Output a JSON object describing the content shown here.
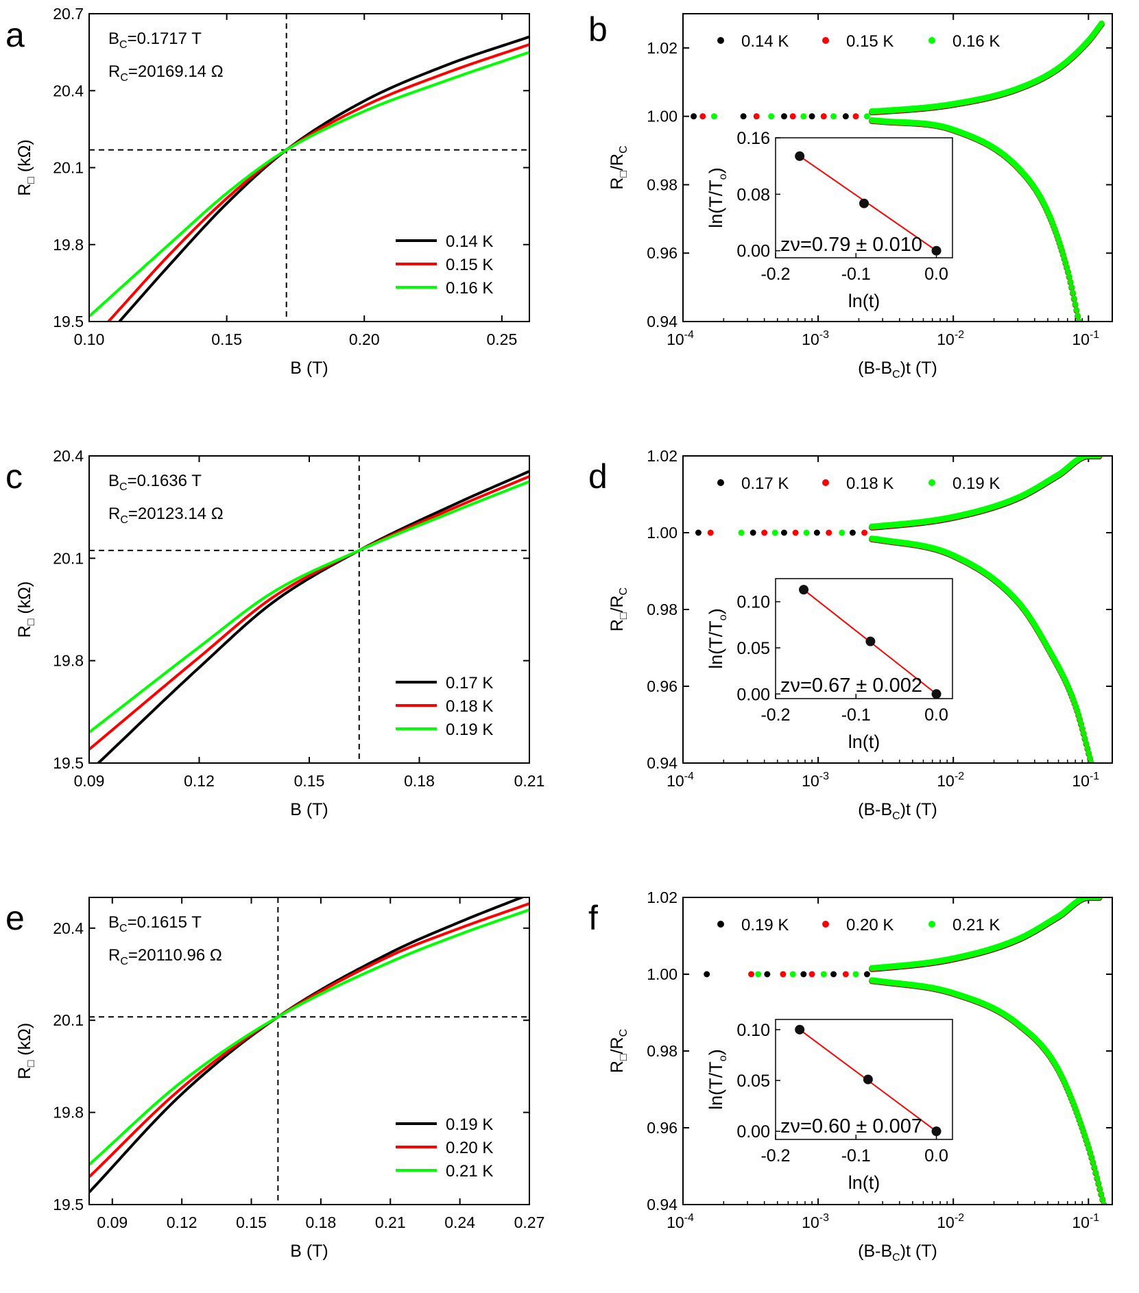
{
  "chart_data": [
    {
      "panel": "a",
      "type": "line",
      "xlabel": "B (T)",
      "ylabel": "R□ (kΩ)",
      "xlim": [
        0.1,
        0.26
      ],
      "ylim": [
        19.5,
        20.7
      ],
      "xticks": [
        0.1,
        0.15,
        0.2,
        0.25
      ],
      "xtick_labels": [
        "0.10",
        "0.15",
        "0.20",
        "0.25"
      ],
      "yticks": [
        19.5,
        19.8,
        20.1,
        20.4,
        20.7
      ],
      "ytick_labels": [
        "19.5",
        "19.8",
        "20.1",
        "20.4",
        "20.7"
      ],
      "crossing": {
        "x": 0.1717,
        "y": 20.169
      },
      "annotations": [
        {
          "base": "B",
          "sub": "C",
          "rest": "=0.1717 T"
        },
        {
          "base": "R",
          "sub": "C",
          "rest": "=20169.14 Ω"
        }
      ],
      "legend": {
        "placement": "lower-right"
      },
      "series": [
        {
          "name": "0.14 K",
          "color": "#000000",
          "x": [
            0.111,
            0.13,
            0.15,
            0.1717,
            0.2,
            0.23,
            0.26
          ],
          "y": [
            19.5,
            19.73,
            19.96,
            20.169,
            20.36,
            20.5,
            20.61
          ]
        },
        {
          "name": "0.15 K",
          "color": "#ff0000",
          "x": [
            0.107,
            0.13,
            0.15,
            0.1717,
            0.2,
            0.23,
            0.26
          ],
          "y": [
            19.5,
            19.77,
            19.98,
            20.169,
            20.34,
            20.47,
            20.58
          ]
        },
        {
          "name": "0.16 K",
          "color": "#00ff00",
          "x": [
            0.1,
            0.13,
            0.15,
            0.1717,
            0.2,
            0.23,
            0.26
          ],
          "y": [
            19.52,
            19.81,
            20.0,
            20.169,
            20.32,
            20.44,
            20.55
          ]
        }
      ]
    },
    {
      "panel": "b",
      "type": "scatter",
      "xlabel": "(B-B_C)t (T)",
      "ylabel": "R□/R_C",
      "xscale": "log",
      "xlim": [
        0.0001,
        0.15
      ],
      "ylim": [
        0.94,
        1.03
      ],
      "xticks": [
        0.0001,
        0.001,
        0.01,
        0.1
      ],
      "xtick_exponents": [
        "-4",
        "-3",
        "-2",
        "-1"
      ],
      "xtick_base": "10",
      "yticks": [
        0.94,
        0.96,
        0.98,
        1.0,
        1.02
      ],
      "ytick_labels": [
        "0.94",
        "0.96",
        "0.98",
        "1.00",
        "1.02"
      ],
      "legend": {
        "placement": "top"
      },
      "series": [
        {
          "name": "0.14 K",
          "color": "#000000"
        },
        {
          "name": "0.15 K",
          "color": "#ff0000"
        },
        {
          "name": "0.16 K",
          "color": "#00ff00"
        }
      ],
      "upper_branch": {
        "x": [
          0.001,
          0.003,
          0.01,
          0.03,
          0.06,
          0.1,
          0.125
        ],
        "y": [
          1.0008,
          1.0015,
          1.0035,
          1.008,
          1.014,
          1.022,
          1.027
        ]
      },
      "lower_branch": {
        "x": [
          0.001,
          0.003,
          0.01,
          0.03,
          0.05,
          0.07,
          0.085
        ],
        "y": [
          0.9995,
          0.9985,
          0.996,
          0.985,
          0.972,
          0.955,
          0.94
        ]
      },
      "flat_points_x": [
        0.00012,
        0.00014,
        0.00017,
        0.00028,
        0.00035,
        0.00045,
        0.00056,
        0.00065,
        0.00078,
        0.0009,
        0.0011,
        0.0013,
        0.0016,
        0.0019,
        0.0023
      ],
      "inset": {
        "xlabel": "ln(t)",
        "ylabel": "ln(T/T_o)",
        "xlim": [
          -0.2,
          0.02
        ],
        "ylim": [
          -0.01,
          0.16
        ],
        "xticks": [
          -0.2,
          -0.1,
          0.0
        ],
        "xtick_labels": [
          "-0.2",
          "-0.1",
          "0.0"
        ],
        "yticks": [
          0.0,
          0.08,
          0.16
        ],
        "ytick_labels": [
          "0.00",
          "0.08",
          "0.16"
        ],
        "points": {
          "x": [
            -0.17,
            -0.09,
            0.0
          ],
          "y": [
            0.134,
            0.067,
            0.0
          ]
        },
        "fit_text": "zν=0.79 ± 0.010"
      }
    },
    {
      "panel": "c",
      "type": "line",
      "xlabel": "B (T)",
      "ylabel": "R□ (kΩ)",
      "xlim": [
        0.09,
        0.21
      ],
      "ylim": [
        19.5,
        20.4
      ],
      "xticks": [
        0.09,
        0.12,
        0.15,
        0.18,
        0.21
      ],
      "xtick_labels": [
        "0.09",
        "0.12",
        "0.15",
        "0.18",
        "0.21"
      ],
      "yticks": [
        19.5,
        19.8,
        20.1,
        20.4
      ],
      "ytick_labels": [
        "19.5",
        "19.8",
        "20.1",
        "20.4"
      ],
      "crossing": {
        "x": 0.1636,
        "y": 20.123
      },
      "annotations": [
        {
          "base": "B",
          "sub": "C",
          "rest": "=0.1636 T"
        },
        {
          "base": "R",
          "sub": "C",
          "rest": "=20123.14 Ω"
        }
      ],
      "legend": {
        "placement": "lower-right"
      },
      "series": [
        {
          "name": "0.17 K",
          "color": "#000000",
          "x": [
            0.0925,
            0.12,
            0.14,
            0.1636,
            0.19,
            0.21
          ],
          "y": [
            19.5,
            19.78,
            19.97,
            20.123,
            20.26,
            20.355
          ]
        },
        {
          "name": "0.18 K",
          "color": "#ff0000",
          "x": [
            0.09,
            0.12,
            0.14,
            0.1636,
            0.19,
            0.21
          ],
          "y": [
            19.54,
            19.81,
            19.985,
            20.123,
            20.25,
            20.34
          ]
        },
        {
          "name": "0.19 K",
          "color": "#00ff00",
          "x": [
            0.09,
            0.12,
            0.14,
            0.1636,
            0.19,
            0.21
          ],
          "y": [
            19.59,
            19.84,
            20.0,
            20.123,
            20.24,
            20.325
          ]
        }
      ]
    },
    {
      "panel": "d",
      "type": "scatter",
      "xlabel": "(B-B_C)t (T)",
      "ylabel": "R□/R_C",
      "xscale": "log",
      "xlim": [
        0.0001,
        0.15
      ],
      "ylim": [
        0.94,
        1.02
      ],
      "xticks": [
        0.0001,
        0.001,
        0.01,
        0.1
      ],
      "xtick_exponents": [
        "-4",
        "-3",
        "-2",
        "-1"
      ],
      "xtick_base": "10",
      "yticks": [
        0.94,
        0.96,
        0.98,
        1.0,
        1.02
      ],
      "ytick_labels": [
        "0.94",
        "0.96",
        "0.98",
        "1.00",
        "1.02"
      ],
      "legend": {
        "placement": "top"
      },
      "series": [
        {
          "name": "0.17 K",
          "color": "#000000"
        },
        {
          "name": "0.18 K",
          "color": "#ff0000"
        },
        {
          "name": "0.19 K",
          "color": "#00ff00"
        }
      ],
      "upper_branch": {
        "x": [
          0.001,
          0.003,
          0.01,
          0.03,
          0.06,
          0.1,
          0.12
        ],
        "y": [
          1.0008,
          1.0017,
          1.004,
          1.009,
          1.015,
          1.02,
          1.02
        ]
      },
      "lower_branch": {
        "x": [
          0.001,
          0.003,
          0.01,
          0.03,
          0.05,
          0.08,
          0.105
        ],
        "y": [
          0.9995,
          0.998,
          0.994,
          0.982,
          0.97,
          0.955,
          0.94
        ]
      },
      "flat_points_x": [
        0.00013,
        0.00016,
        0.00027,
        0.00033,
        0.0004,
        0.00048,
        0.00056,
        0.00068,
        0.00082,
        0.00098,
        0.0012,
        0.0015,
        0.0018,
        0.0022
      ],
      "inset": {
        "xlabel": "ln(t)",
        "ylabel": "ln(T/T_o)",
        "xlim": [
          -0.2,
          0.02
        ],
        "ylim": [
          -0.005,
          0.125
        ],
        "xticks": [
          -0.2,
          -0.1,
          0.0
        ],
        "xtick_labels": [
          "-0.2",
          "-0.1",
          "0.0"
        ],
        "yticks": [
          0.0,
          0.05,
          0.1
        ],
        "ytick_labels": [
          "0.00",
          "0.05",
          "0.10"
        ],
        "points": {
          "x": [
            -0.165,
            -0.082,
            0.0
          ],
          "y": [
            0.113,
            0.057,
            0.0
          ]
        },
        "fit_text": "zν=0.67 ± 0.002"
      }
    },
    {
      "panel": "e",
      "type": "line",
      "xlabel": "B (T)",
      "ylabel": "R□ (kΩ)",
      "xlim": [
        0.08,
        0.27
      ],
      "ylim": [
        19.5,
        20.5
      ],
      "xticks": [
        0.09,
        0.12,
        0.15,
        0.18,
        0.21,
        0.24,
        0.27
      ],
      "xtick_labels": [
        "0.09",
        "0.12",
        "0.15",
        "0.18",
        "0.21",
        "0.24",
        "0.27"
      ],
      "yticks": [
        19.5,
        19.8,
        20.1,
        20.4
      ],
      "ytick_labels": [
        "19.5",
        "19.8",
        "20.1",
        "20.4"
      ],
      "crossing": {
        "x": 0.1615,
        "y": 20.111
      },
      "annotations": [
        {
          "base": "B",
          "sub": "C",
          "rest": "=0.1615 T"
        },
        {
          "base": "R",
          "sub": "C",
          "rest": "=20110.96 Ω"
        }
      ],
      "legend": {
        "placement": "lower-right"
      },
      "series": [
        {
          "name": "0.19 K",
          "color": "#000000",
          "x": [
            0.08,
            0.12,
            0.1615,
            0.21,
            0.24,
            0.27
          ],
          "y": [
            19.54,
            19.86,
            20.111,
            20.32,
            20.42,
            20.51
          ]
        },
        {
          "name": "0.20 K",
          "color": "#ff0000",
          "x": [
            0.08,
            0.12,
            0.1615,
            0.21,
            0.24,
            0.27
          ],
          "y": [
            19.59,
            19.88,
            20.111,
            20.31,
            20.4,
            20.48
          ]
        },
        {
          "name": "0.21 K",
          "color": "#00ff00",
          "x": [
            0.08,
            0.12,
            0.1615,
            0.21,
            0.24,
            0.27
          ],
          "y": [
            19.63,
            19.9,
            20.111,
            20.29,
            20.38,
            20.46
          ]
        }
      ]
    },
    {
      "panel": "f",
      "type": "scatter",
      "xlabel": "(B-B_C)t (T)",
      "ylabel": "R□/R_C",
      "xscale": "log",
      "xlim": [
        0.0001,
        0.15
      ],
      "ylim": [
        0.94,
        1.02
      ],
      "xticks": [
        0.0001,
        0.001,
        0.01,
        0.1
      ],
      "xtick_exponents": [
        "-4",
        "-3",
        "-2",
        "-1"
      ],
      "xtick_base": "10",
      "yticks": [
        0.94,
        0.96,
        0.98,
        1.0,
        1.02
      ],
      "ytick_labels": [
        "0.94",
        "0.96",
        "0.98",
        "1.00",
        "1.02"
      ],
      "legend": {
        "placement": "top"
      },
      "series": [
        {
          "name": "0.19 K",
          "color": "#000000"
        },
        {
          "name": "0.20 K",
          "color": "#ff0000"
        },
        {
          "name": "0.21 K",
          "color": "#00ff00"
        }
      ],
      "upper_branch": {
        "x": [
          0.001,
          0.003,
          0.01,
          0.03,
          0.06,
          0.1,
          0.12
        ],
        "y": [
          1.0008,
          1.0017,
          1.004,
          1.009,
          1.015,
          1.02,
          1.02
        ]
      },
      "lower_branch": {
        "x": [
          0.001,
          0.003,
          0.01,
          0.03,
          0.06,
          0.1,
          0.13
        ],
        "y": [
          0.9995,
          0.998,
          0.995,
          0.987,
          0.975,
          0.955,
          0.94
        ]
      },
      "flat_points_x": [
        0.00015,
        0.00032,
        0.00036,
        0.00042,
        0.00055,
        0.00065,
        0.00078,
        0.0009,
        0.0011,
        0.0013,
        0.0016,
        0.0019,
        0.0023
      ],
      "inset": {
        "xlabel": "ln(t)",
        "ylabel": "ln(T/T_o)",
        "xlim": [
          -0.2,
          0.02
        ],
        "ylim": [
          -0.008,
          0.11
        ],
        "xticks": [
          -0.2,
          -0.1,
          0.0
        ],
        "xtick_labels": [
          "-0.2",
          "-0.1",
          "0.0"
        ],
        "yticks": [
          0.0,
          0.05,
          0.1
        ],
        "ytick_labels": [
          "0.00",
          "0.05",
          "0.10"
        ],
        "points": {
          "x": [
            -0.17,
            -0.085,
            0.0
          ],
          "y": [
            0.1,
            0.051,
            0.0
          ]
        },
        "fit_text": "zν=0.60 ± 0.007"
      }
    }
  ]
}
